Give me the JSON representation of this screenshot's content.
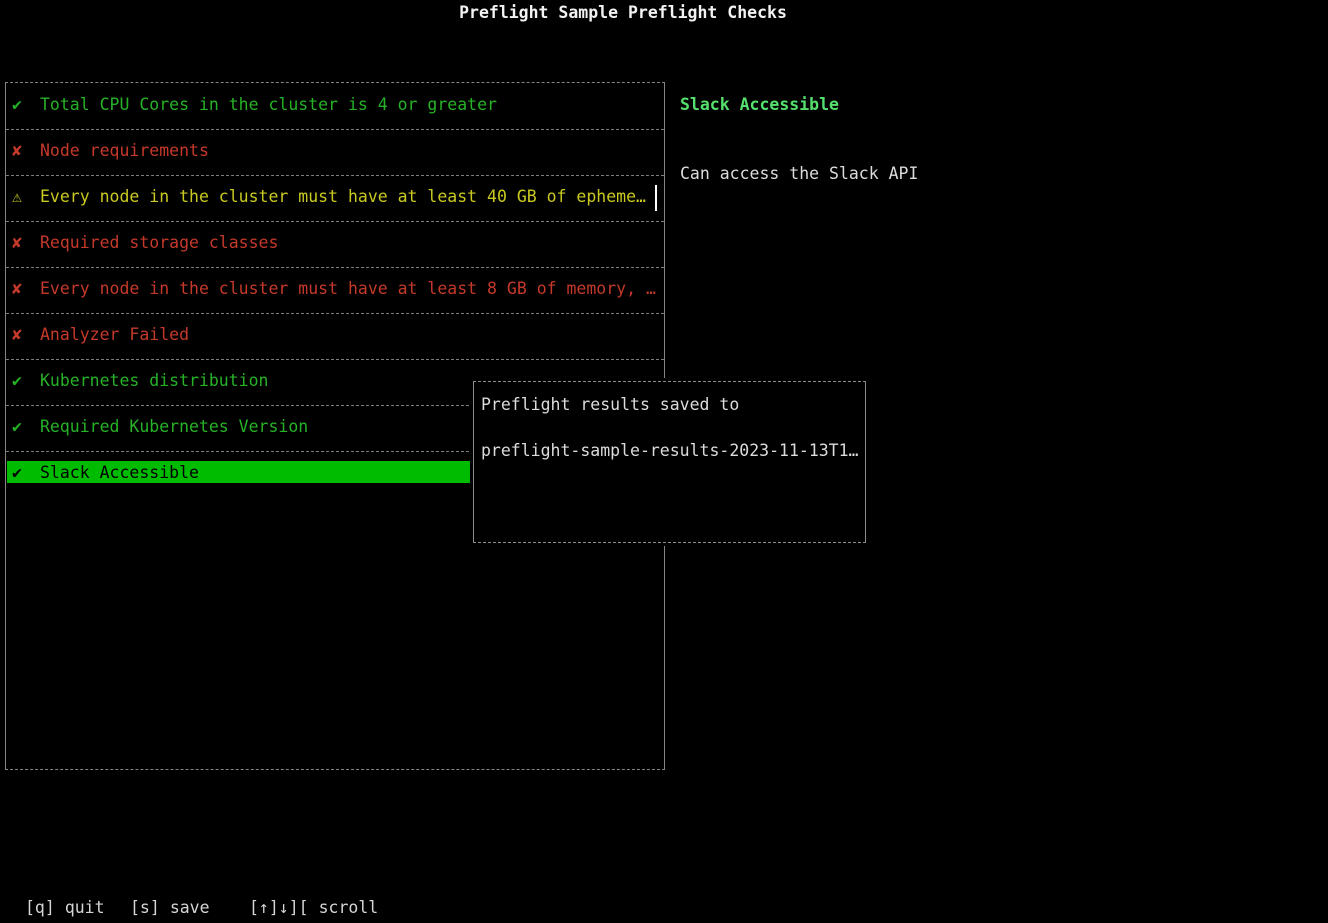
{
  "title": "Preflight Sample Preflight Checks",
  "icons": {
    "check": "✔",
    "cross": "✘",
    "warning": "⚠"
  },
  "colors": {
    "pass_green": "#26b226",
    "fail_red": "#c5392b",
    "warn_yellow": "#c9c920",
    "selected_bg_green": "#00bc00",
    "detail_title_green": "#55e06e",
    "border_gray": "#848484",
    "text_white": "#dcdcdc"
  },
  "checklist": {
    "items": [
      {
        "status": "pass",
        "label": "Total CPU Cores in the cluster is 4 or greater",
        "selected": false
      },
      {
        "status": "fail",
        "label": "Node requirements",
        "selected": false
      },
      {
        "status": "warn",
        "label": "Every node in the cluster must have at least 40 GB of epheme…",
        "selected": false
      },
      {
        "status": "fail",
        "label": "Required storage classes",
        "selected": false
      },
      {
        "status": "fail",
        "label": "Every node in the cluster must have at least 8 GB of memory, …",
        "selected": false
      },
      {
        "status": "fail",
        "label": "Analyzer Failed",
        "selected": false
      },
      {
        "status": "pass",
        "label": "Kubernetes distribution",
        "selected": false
      },
      {
        "status": "pass",
        "label": "Required Kubernetes Version",
        "selected": false
      },
      {
        "status": "pass",
        "label": "Slack Accessible",
        "selected": true
      }
    ]
  },
  "detail": {
    "title": "Slack Accessible",
    "message": "Can access the Slack API"
  },
  "modal": {
    "line1": "Preflight results saved to",
    "line2": "preflight-sample-results-2023-11-13T1…"
  },
  "statusbar": {
    "hints": [
      {
        "key": "[q]",
        "label": "quit"
      },
      {
        "key": "[s]",
        "label": "save"
      },
      {
        "key": "[↑]↓][",
        "label": "scroll"
      }
    ]
  }
}
